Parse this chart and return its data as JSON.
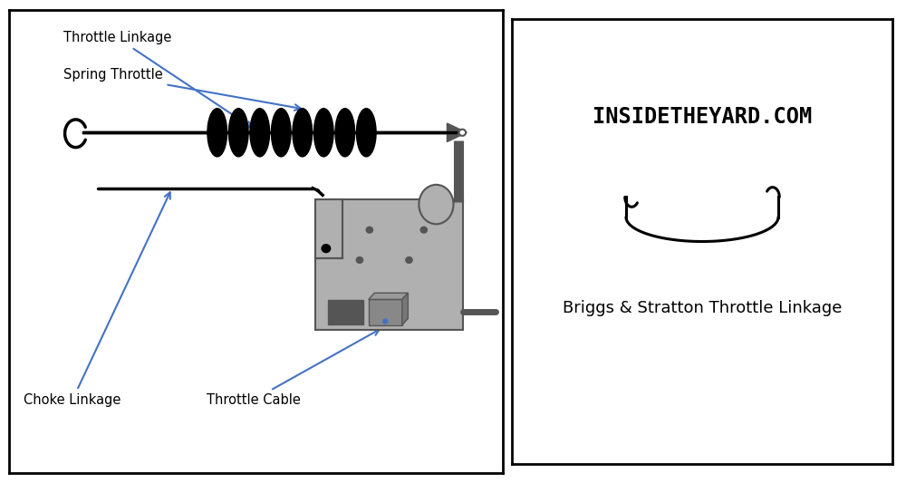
{
  "bg_color": "#ffffff",
  "border_color": "#000000",
  "right_panel_title": "INSIDETHEYARD.COM",
  "right_panel_subtitle": "Briggs & Stratton Throttle Linkage",
  "labels": {
    "throttle_linkage": "Throttle Linkage",
    "spring_throttle": "Spring Throttle",
    "choke_linkage": "Choke Linkage",
    "throttle_cable": "Throttle Cable"
  },
  "arrow_color": "#4472c4",
  "line_color": "#000000",
  "body_color": "#b0b0b0",
  "dark_gray": "#555555",
  "med_gray": "#888888",
  "box_blue": "#4472c4"
}
